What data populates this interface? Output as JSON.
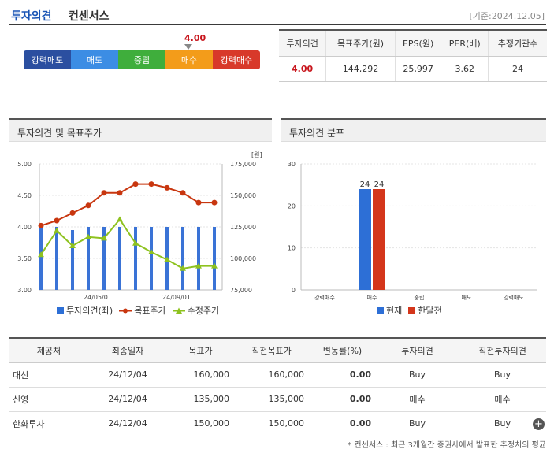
{
  "header": {
    "title": "투자의견",
    "subtitle": "컨센서스",
    "date": "[기준:2024.12.05]"
  },
  "scale": {
    "current_value": "4.00",
    "labels": [
      "강력매도",
      "매도",
      "중립",
      "매수",
      "강력매수"
    ],
    "colors": [
      "#2b4fa0",
      "#3c8de4",
      "#3fae3c",
      "#f39c1a",
      "#d8392a"
    ]
  },
  "consensus_table": {
    "headers": [
      "투자의견",
      "목표주가(원)",
      "EPS(원)",
      "PER(배)",
      "추정기관수"
    ],
    "row": [
      "4.00",
      "144,292",
      "25,997",
      "3.62",
      "24"
    ]
  },
  "panel_left": {
    "title": "투자의견 및 목표주가",
    "unit": "[원]",
    "legend": [
      "투자의견(좌)",
      "목표주가",
      "수정주가"
    ]
  },
  "panel_right": {
    "title": "투자의견 분포",
    "legend": [
      "현재",
      "한달전"
    ]
  },
  "chart_data": [
    {
      "type": "line",
      "title": "투자의견 및 목표주가",
      "y_left": {
        "ticks": [
          "5.00",
          "4.50",
          "4.00",
          "3.50",
          "3.00"
        ],
        "range": [
          3.0,
          5.0
        ]
      },
      "y_right": {
        "ticks": [
          "175,000",
          "150,000",
          "125,000",
          "100,000",
          "75,000"
        ],
        "range": [
          75000,
          175000
        ]
      },
      "x_ticks": [
        "24/05/01",
        "24/09/01"
      ],
      "series": [
        {
          "name": "투자의견(좌)",
          "type": "bar",
          "color": "#3a73d6",
          "values": [
            4.0,
            4.0,
            3.95,
            4.0,
            4.0,
            4.0,
            4.0,
            4.0,
            4.0,
            4.0,
            4.0,
            4.0
          ]
        },
        {
          "name": "목표주가",
          "color": "#c8360f",
          "values": [
            126000,
            130000,
            136000,
            142000,
            152000,
            152000,
            159000,
            159000,
            156000,
            152000,
            144300,
            144300
          ]
        },
        {
          "name": "수정주가",
          "color": "#8ec21f",
          "values": [
            103000,
            122000,
            110000,
            117000,
            116000,
            131000,
            112000,
            105000,
            99000,
            92000,
            94000,
            94000
          ]
        }
      ]
    },
    {
      "type": "bar",
      "title": "투자의견 분포",
      "categories": [
        "강력매수",
        "매수",
        "중립",
        "매도",
        "강력매도"
      ],
      "y_ticks": [
        "30",
        "20",
        "10",
        "0"
      ],
      "ylim": [
        0,
        30
      ],
      "series": [
        {
          "name": "현재",
          "color": "#2d6fd6",
          "values": [
            0,
            24,
            0,
            0,
            0
          ]
        },
        {
          "name": "한달전",
          "color": "#d4361b",
          "values": [
            0,
            24,
            0,
            0,
            0
          ]
        }
      ]
    }
  ],
  "provider_table": {
    "headers": [
      "제공처",
      "최종일자",
      "목표가",
      "직전목표가",
      "변동률(%)",
      "투자의견",
      "직전투자의견"
    ],
    "rows": [
      [
        "대신",
        "24/12/04",
        "160,000",
        "160,000",
        "0.00",
        "Buy",
        "Buy"
      ],
      [
        "신영",
        "24/12/04",
        "135,000",
        "135,000",
        "0.00",
        "매수",
        "매수"
      ],
      [
        "한화투자",
        "24/12/04",
        "150,000",
        "150,000",
        "0.00",
        "Buy",
        "Buy"
      ]
    ]
  },
  "footer": {
    "note": "* 컨센서스 : 최근 3개월간 증권사에서 발표한 추정치의 평균"
  }
}
